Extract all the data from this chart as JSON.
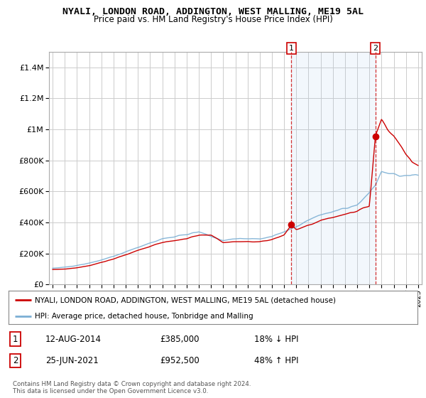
{
  "title": "NYALI, LONDON ROAD, ADDINGTON, WEST MALLING, ME19 5AL",
  "subtitle": "Price paid vs. HM Land Registry's House Price Index (HPI)",
  "legend_line1": "NYALI, LONDON ROAD, ADDINGTON, WEST MALLING, ME19 5AL (detached house)",
  "legend_line2": "HPI: Average price, detached house, Tonbridge and Malling",
  "annotation1_label": "1",
  "annotation1_date": "12-AUG-2014",
  "annotation1_price": "£385,000",
  "annotation1_hpi": "18% ↓ HPI",
  "annotation1_year": 2014.6,
  "annotation1_value": 385000,
  "annotation2_label": "2",
  "annotation2_date": "25-JUN-2021",
  "annotation2_price": "£952,500",
  "annotation2_hpi": "48% ↑ HPI",
  "annotation2_year": 2021.5,
  "annotation2_value": 952500,
  "footer": "Contains HM Land Registry data © Crown copyright and database right 2024.\nThis data is licensed under the Open Government Licence v3.0.",
  "hpi_color": "#7bafd4",
  "price_color": "#cc0000",
  "vline_color": "#cc0000",
  "fill_color": "#ddeeff",
  "ylim": [
    0,
    1500000
  ],
  "xlim": [
    1994.7,
    2025.3
  ],
  "background_color": "#ffffff",
  "grid_color": "#cccccc"
}
